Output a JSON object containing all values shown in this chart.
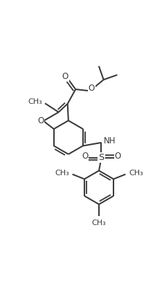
{
  "background_color": "#ffffff",
  "line_color": "#3a3a3a",
  "line_width": 1.5,
  "figsize": [
    2.37,
    4.13
  ],
  "dpi": 100,
  "xlim": [
    0,
    10
  ],
  "ylim": [
    0,
    17
  ],
  "font_size": 8.5
}
